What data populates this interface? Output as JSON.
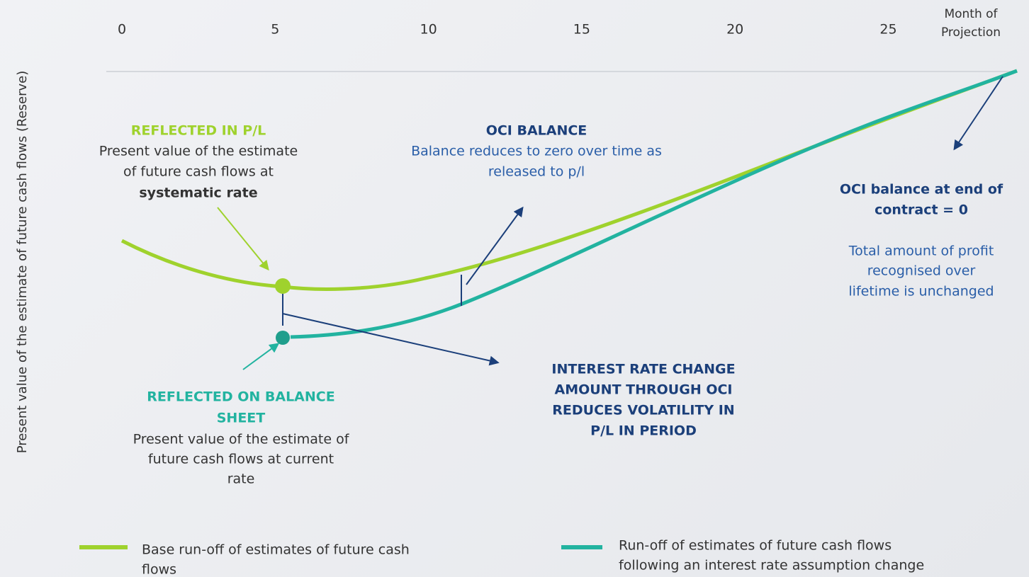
{
  "x_axis": {
    "ticks": [
      "0",
      "5",
      "10",
      "15",
      "20",
      "25"
    ],
    "title": [
      "Month of",
      "Projection"
    ]
  },
  "y_axis": {
    "title": "Present value of the estimate of future cash flows (Reserve)"
  },
  "annotations": {
    "pl": {
      "heading": "REFLECTED IN P/L",
      "lines": [
        "Present value of the estimate",
        "of future cash flows at"
      ],
      "emphasis": "systematic rate"
    },
    "oci_balance": {
      "heading": "OCI BALANCE",
      "lines": [
        "Balance reduces to zero over time as",
        "released to p/l"
      ]
    },
    "end": {
      "heading": [
        "OCI balance at end of",
        "contract = 0"
      ],
      "lines": [
        "Total amount of profit",
        "recognised over",
        "lifetime is unchanged"
      ]
    },
    "interest": {
      "heading": [
        "INTEREST RATE CHANGE",
        "AMOUNT THROUGH OCI",
        "REDUCES VOLATILITY IN",
        "P/L IN PERIOD"
      ]
    },
    "balance_sheet": {
      "heading": [
        "REFLECTED ON BALANCE",
        "SHEET"
      ],
      "lines": [
        "Present value of the estimate of",
        "future cash flows at current",
        "rate"
      ]
    }
  },
  "legend": [
    {
      "lines": [
        "Base run-off of estimates of future cash",
        "flows"
      ]
    },
    {
      "lines": [
        "Run-off of estimates of future cash flows",
        "following an interest rate assumption change"
      ]
    }
  ]
}
